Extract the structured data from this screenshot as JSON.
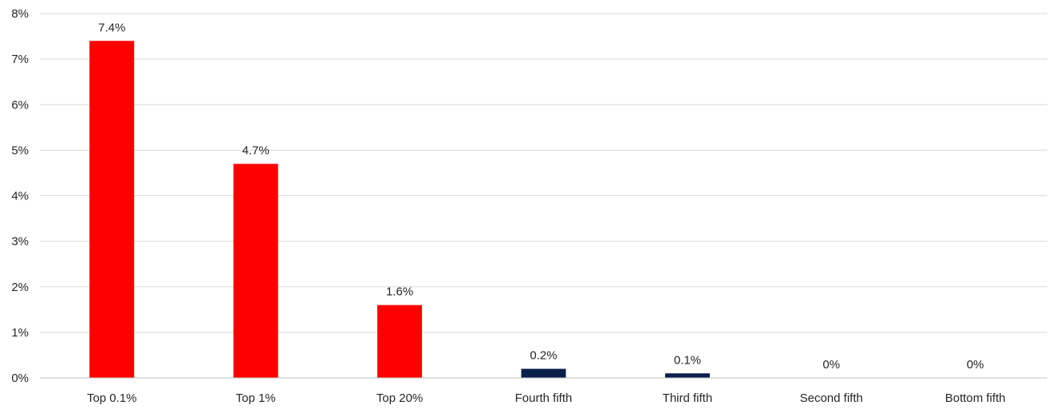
{
  "chart_data": {
    "type": "bar",
    "title": "",
    "xlabel": "",
    "ylabel": "",
    "categories": [
      "Top 0.1%",
      "Top 1%",
      "Top 20%",
      "Fourth fifth",
      "Third fifth",
      "Second fifth",
      "Bottom fifth"
    ],
    "values": [
      7.4,
      4.7,
      1.6,
      0.2,
      0.1,
      0,
      0
    ],
    "data_labels": [
      "7.4%",
      "4.7%",
      "1.6%",
      "0.2%",
      "0.1%",
      "0%",
      "0%"
    ],
    "bar_colors": [
      "#ff0000",
      "#ff0000",
      "#ff0000",
      "#0b1f4b",
      "#0b1f4b",
      "#0b1f4b",
      "#0b1f4b"
    ],
    "ylim": [
      0,
      8
    ],
    "yticks": [
      0,
      1,
      2,
      3,
      4,
      5,
      6,
      7,
      8
    ],
    "ytick_labels": [
      "0%",
      "1%",
      "2%",
      "3%",
      "4%",
      "5%",
      "6%",
      "7%",
      "8%"
    ],
    "grid": true,
    "legend": "none"
  }
}
